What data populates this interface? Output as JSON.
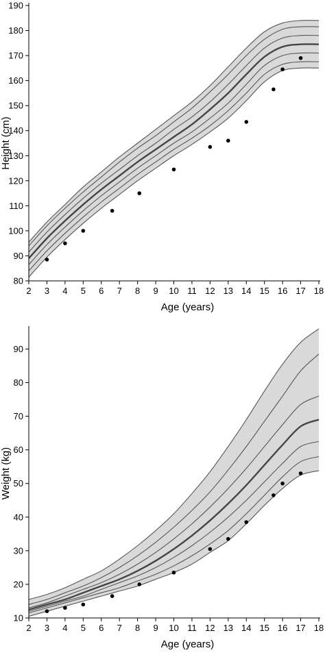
{
  "chart_data": [
    {
      "type": "line",
      "xlabel": "Age (years)",
      "ylabel": "Height (cm)",
      "xlim": [
        2,
        18
      ],
      "ylim": [
        80,
        190
      ],
      "x_ticks": [
        2,
        3,
        4,
        5,
        6,
        7,
        8,
        9,
        10,
        11,
        12,
        13,
        14,
        15,
        16,
        17,
        18
      ],
      "y_ticks": [
        80,
        90,
        100,
        110,
        120,
        130,
        140,
        150,
        160,
        170,
        180,
        190
      ],
      "grid": false,
      "band_fill": "#d9d9d9",
      "line_color": "#555555",
      "median_color": "#444444",
      "point_color": "#000000",
      "centile_x": [
        2,
        3,
        4,
        5,
        6,
        7,
        8,
        9,
        10,
        11,
        12,
        13,
        14,
        15,
        16,
        17,
        18
      ],
      "centiles": [
        [
          81.5,
          89.5,
          96.5,
          103.0,
          109.0,
          114.5,
          120.0,
          125.0,
          130.0,
          134.5,
          139.5,
          145.0,
          152.0,
          159.5,
          164.0,
          165.0,
          165.0
        ],
        [
          84.0,
          92.0,
          99.0,
          105.5,
          111.5,
          117.0,
          122.5,
          127.5,
          132.5,
          137.0,
          142.0,
          148.0,
          155.0,
          162.5,
          166.5,
          167.5,
          167.5
        ],
        [
          86.5,
          94.5,
          101.5,
          108.0,
          114.0,
          119.5,
          125.0,
          130.0,
          135.0,
          139.5,
          145.0,
          151.0,
          158.5,
          166.0,
          170.0,
          171.0,
          171.0
        ],
        [
          89.0,
          97.0,
          104.0,
          110.5,
          116.5,
          122.0,
          127.5,
          132.5,
          137.5,
          142.5,
          148.5,
          155.0,
          162.5,
          169.5,
          173.5,
          174.5,
          174.5
        ],
        [
          91.5,
          99.5,
          106.5,
          113.0,
          119.0,
          124.5,
          130.0,
          135.0,
          140.5,
          145.5,
          151.5,
          158.5,
          166.0,
          173.0,
          177.0,
          178.0,
          178.0
        ],
        [
          94.0,
          102.0,
          109.0,
          115.5,
          121.5,
          127.5,
          133.0,
          138.0,
          143.5,
          149.0,
          155.5,
          162.5,
          170.0,
          176.5,
          180.5,
          181.5,
          181.5
        ],
        [
          95.5,
          103.5,
          110.5,
          117.5,
          123.5,
          129.5,
          135.0,
          140.5,
          146.0,
          151.5,
          158.0,
          165.5,
          173.0,
          179.5,
          183.0,
          184.0,
          184.0
        ]
      ],
      "median_index": 3,
      "points": [
        {
          "x": 3.0,
          "y": 88.5
        },
        {
          "x": 4.0,
          "y": 95.0
        },
        {
          "x": 5.0,
          "y": 100.0
        },
        {
          "x": 6.6,
          "y": 108.0
        },
        {
          "x": 8.1,
          "y": 115.0
        },
        {
          "x": 10.0,
          "y": 124.5
        },
        {
          "x": 12.0,
          "y": 133.5
        },
        {
          "x": 13.0,
          "y": 136.0
        },
        {
          "x": 14.0,
          "y": 143.5
        },
        {
          "x": 15.5,
          "y": 156.5
        },
        {
          "x": 16.0,
          "y": 164.5
        },
        {
          "x": 17.0,
          "y": 169.0
        }
      ]
    },
    {
      "type": "line",
      "xlabel": "Age (years)",
      "ylabel": "Weight (kg)",
      "xlim": [
        2,
        18
      ],
      "ylim": [
        10,
        96
      ],
      "x_ticks": [
        2,
        3,
        4,
        5,
        6,
        7,
        8,
        9,
        10,
        11,
        12,
        13,
        14,
        15,
        16,
        17,
        18
      ],
      "y_ticks": [
        10,
        20,
        30,
        40,
        50,
        60,
        70,
        80,
        90
      ],
      "grid": false,
      "band_fill": "#d9d9d9",
      "line_color": "#555555",
      "median_color": "#444444",
      "point_color": "#000000",
      "centile_x": [
        2,
        3,
        4,
        5,
        6,
        7,
        8,
        9,
        10,
        11,
        12,
        13,
        14,
        15,
        16,
        17,
        18
      ],
      "centiles": [
        [
          10.5,
          12.0,
          13.5,
          15.0,
          16.5,
          18.0,
          19.5,
          21.5,
          23.5,
          26.0,
          29.5,
          33.0,
          38.0,
          43.5,
          48.5,
          52.5,
          53.8
        ],
        [
          11.5,
          13.0,
          14.5,
          16.0,
          17.5,
          19.0,
          21.0,
          23.0,
          25.5,
          28.5,
          32.0,
          36.0,
          41.0,
          46.5,
          52.0,
          56.5,
          58.0
        ],
        [
          12.0,
          13.5,
          15.0,
          16.5,
          18.5,
          20.5,
          22.5,
          25.0,
          28.0,
          31.5,
          35.5,
          40.0,
          45.0,
          50.5,
          56.0,
          61.0,
          62.5
        ],
        [
          12.5,
          14.0,
          15.5,
          17.5,
          19.5,
          21.5,
          24.0,
          27.0,
          30.5,
          34.5,
          39.0,
          44.0,
          49.5,
          55.5,
          61.5,
          67.0,
          69.0
        ],
        [
          13.0,
          14.5,
          16.5,
          18.5,
          20.5,
          23.0,
          26.0,
          29.5,
          33.5,
          38.0,
          43.0,
          48.5,
          54.5,
          61.0,
          67.5,
          73.5,
          76.0
        ],
        [
          14.0,
          15.5,
          17.5,
          19.5,
          22.0,
          25.0,
          28.5,
          32.5,
          37.0,
          42.0,
          47.5,
          54.0,
          61.0,
          68.5,
          76.0,
          83.5,
          88.5
        ],
        [
          15.5,
          17.0,
          19.0,
          21.5,
          24.0,
          27.5,
          31.5,
          36.0,
          41.0,
          47.0,
          53.5,
          61.0,
          69.0,
          77.5,
          85.5,
          92.0,
          96.0
        ]
      ],
      "median_index": 3,
      "points": [
        {
          "x": 3.0,
          "y": 12.0
        },
        {
          "x": 4.0,
          "y": 13.0
        },
        {
          "x": 5.0,
          "y": 14.0
        },
        {
          "x": 6.6,
          "y": 16.5
        },
        {
          "x": 8.1,
          "y": 20.0
        },
        {
          "x": 10.0,
          "y": 23.5
        },
        {
          "x": 12.0,
          "y": 30.5
        },
        {
          "x": 13.0,
          "y": 33.5
        },
        {
          "x": 14.0,
          "y": 38.5
        },
        {
          "x": 15.5,
          "y": 46.5
        },
        {
          "x": 16.0,
          "y": 50.0
        },
        {
          "x": 17.0,
          "y": 53.0
        }
      ]
    }
  ]
}
